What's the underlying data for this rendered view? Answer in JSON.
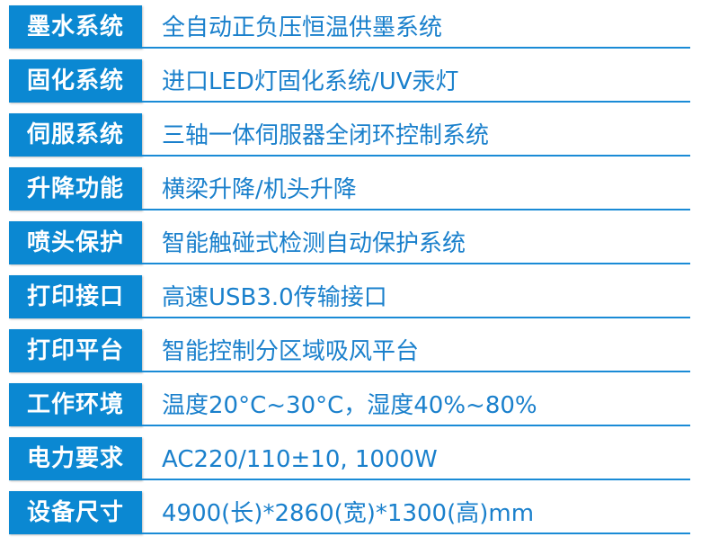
{
  "specs": [
    {
      "label": "墨水系统",
      "value": "全自动正负压恒温供墨系统"
    },
    {
      "label": "固化系统",
      "value": "进口LED灯固化系统/UV汞灯"
    },
    {
      "label": "伺服系统",
      "value": "三轴一体伺服器全闭环控制系统"
    },
    {
      "label": "升降功能",
      "value": "横梁升降/机头升降"
    },
    {
      "label": "喷头保护",
      "value": "智能触碰式检测自动保护系统"
    },
    {
      "label": "打印接口",
      "value": "高速USB3.0传输接口"
    },
    {
      "label": "打印平台",
      "value": "智能控制分区域吸风平台"
    },
    {
      "label": "工作环境",
      "value": "温度20°C~30°C，湿度40%~80%"
    },
    {
      "label": "电力要求",
      "value": "AC220/110±10, 1000W"
    },
    {
      "label": "设备尺寸",
      "value": "4900(长)*2860(宽)*1300(高)mm"
    }
  ],
  "colors": {
    "label_bg": "#0b88d2",
    "value_text": "#1a80cc",
    "line": "#1a8bd6"
  }
}
